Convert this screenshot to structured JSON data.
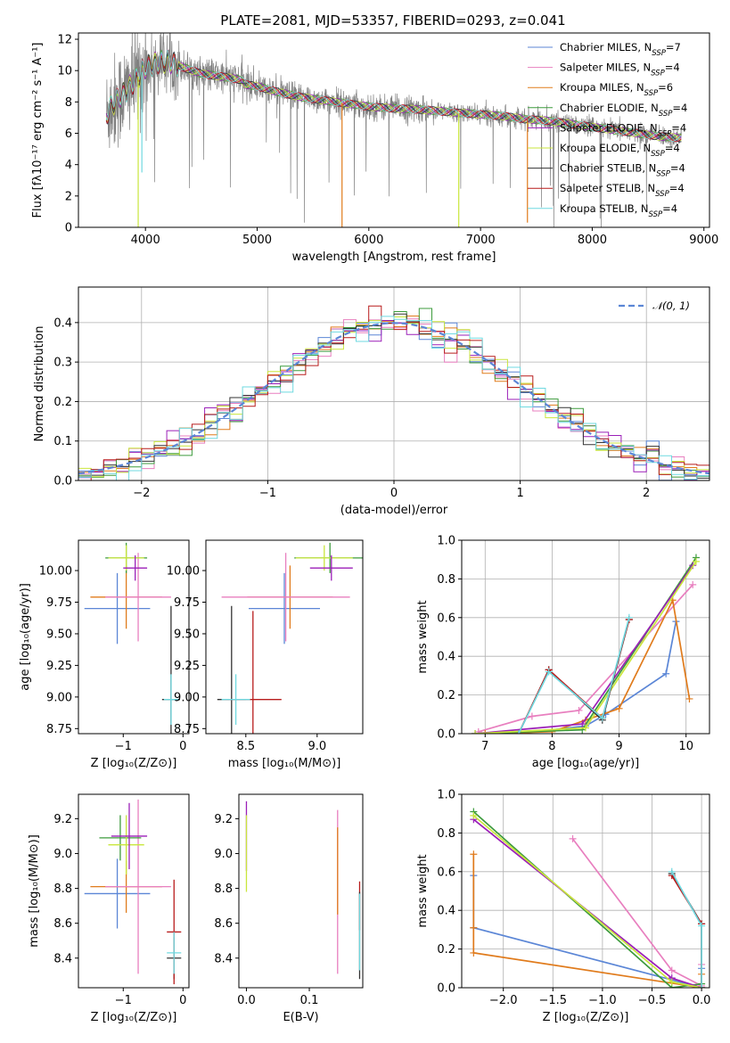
{
  "colors": {
    "chabrier_miles": "#5b86d6",
    "salpeter_miles": "#e87fbf",
    "kroupa_miles": "#e07b1c",
    "chabrier_elodie": "#3d9b3d",
    "salpeter_elodie": "#9b1fb8",
    "kroupa_elodie": "#c9e63c",
    "chabrier_stelib": "#333333",
    "salpeter_stelib": "#b81c1c",
    "kroupa_stelib": "#6fd9e0",
    "normal": "#5b86d6",
    "spectrum": "#808080"
  },
  "chart_data": [
    {
      "id": "spectrum",
      "type": "line",
      "title": "PLATE=2081, MJD=53357, FIBERID=0293, z=0.041",
      "xlabel": "wavelength [Angstrom, rest frame]",
      "ylabel": "Flux [fλ10⁻¹⁷ erg cm⁻² s⁻¹ A⁻¹]",
      "xlim": [
        3400,
        9050
      ],
      "ylim": [
        0,
        12.4
      ],
      "xticks": [
        "4000",
        "5000",
        "6000",
        "7000",
        "8000",
        "9000"
      ],
      "yticks": [
        "0",
        "2",
        "4",
        "6",
        "8",
        "10",
        "12"
      ],
      "legend_position": "top-right",
      "legend": [
        {
          "pre": "Chabrier MILES, N",
          "sub": "SSP",
          "post": "=7",
          "color": "#5b86d6"
        },
        {
          "pre": "Salpeter MILES, N",
          "sub": "SSP",
          "post": "=4",
          "color": "#e87fbf"
        },
        {
          "pre": "Kroupa MILES, N",
          "sub": "SSP",
          "post": "=6",
          "color": "#e07b1c"
        },
        {
          "pre": "Chabrier ELODIE, N",
          "sub": "SSP",
          "post": "=4",
          "color": "#3d9b3d"
        },
        {
          "pre": "Salpeter ELODIE, N",
          "sub": "SSP",
          "post": "=4",
          "color": "#9b1fb8"
        },
        {
          "pre": "Kroupa ELODIE, N",
          "sub": "SSP",
          "post": "=4",
          "color": "#c9e63c"
        },
        {
          "pre": "Chabrier STELIB, N",
          "sub": "SSP",
          "post": "=4",
          "color": "#333333"
        },
        {
          "pre": "Salpeter STELIB, N",
          "sub": "SSP",
          "post": "=4",
          "color": "#b81c1c"
        },
        {
          "pre": "Kroupa STELIB, N",
          "sub": "SSP",
          "post": "=4",
          "color": "#6fd9e0"
        }
      ],
      "continuum": {
        "x": [
          3650,
          3700,
          3800,
          3900,
          4000,
          4100,
          4200,
          4300,
          4500,
          4700,
          4860,
          4900,
          5000,
          5200,
          5400,
          5600,
          5800,
          6000,
          6200,
          6500,
          6800,
          7000,
          7200,
          7400,
          7600,
          7800,
          8000,
          8200,
          8400,
          8600,
          8800
        ],
        "y": [
          7.2,
          7.8,
          8.5,
          9.3,
          10.2,
          10.5,
          10.6,
          10.3,
          9.8,
          9.6,
          9.4,
          9.1,
          9.0,
          8.6,
          8.3,
          8.1,
          7.9,
          7.7,
          7.6,
          7.5,
          7.3,
          7.2,
          7.1,
          6.9,
          6.8,
          6.6,
          6.4,
          6.2,
          6.0,
          5.8,
          5.7
        ]
      },
      "model_absorption_dips": [
        {
          "x": 3935,
          "y": 0.0,
          "color": "#c9e63c"
        },
        {
          "x": 3968,
          "y": 3.5,
          "color": "#6fd9e0"
        },
        {
          "x": 5760,
          "y": 0.0,
          "color": "#e07b1c"
        },
        {
          "x": 6805,
          "y": 0.0,
          "color": "#c9e63c"
        },
        {
          "x": 7420,
          "y": 0.3,
          "color": "#e07b1c"
        }
      ]
    },
    {
      "id": "residuals",
      "type": "histogram",
      "xlabel": "(data-model)/error",
      "ylabel": "Normed distribution",
      "xlim": [
        -2.5,
        2.5
      ],
      "ylim": [
        0,
        0.49
      ],
      "xticks": [
        "−2",
        "−1",
        "0",
        "1",
        "2"
      ],
      "yticks": [
        "0.0",
        "0.1",
        "0.2",
        "0.3",
        "0.4"
      ],
      "grid": true,
      "legend_position": "top-right",
      "legend": [
        {
          "label": "𝒩(0, 1)",
          "color": "#5b86d6",
          "style": "dashed"
        }
      ],
      "bin_width": 0.1
    },
    {
      "id": "age_vs_Z",
      "type": "errorbar",
      "xlabel": "Z [log₁₀(Z/Z⊙)]",
      "ylabel": "age  [log₁₀(age/yr)]",
      "xlim": [
        -1.75,
        0.1
      ],
      "ylim": [
        8.71,
        10.24
      ],
      "xticks": [
        "−1",
        "0"
      ],
      "yticks": [
        "8.75",
        "9.00",
        "9.25",
        "9.50",
        "9.75",
        "10.00"
      ],
      "points": [
        {
          "x": -1.1,
          "y": 9.7,
          "xerr": 0.55,
          "yerr": 0.28,
          "color": "#5b86d6"
        },
        {
          "x": -0.95,
          "y": 9.79,
          "xerr": 0.6,
          "yerr": 0.25,
          "color": "#e07b1c"
        },
        {
          "x": -0.75,
          "y": 9.79,
          "xerr": 0.55,
          "yerr": 0.35,
          "color": "#e87fbf"
        },
        {
          "x": -0.95,
          "y": 10.1,
          "xerr": 0.35,
          "yerr": 0.12,
          "color": "#3d9b3d"
        },
        {
          "x": -0.95,
          "y": 10.1,
          "xerr": 0.3,
          "yerr": 0.1,
          "color": "#c9e63c"
        },
        {
          "x": -0.8,
          "y": 10.02,
          "xerr": 0.2,
          "yerr": 0.1,
          "color": "#9b1fb8"
        },
        {
          "x": -0.2,
          "y": 8.98,
          "xerr": 0.15,
          "yerr": 0.74,
          "color": "#333333"
        },
        {
          "x": -0.2,
          "y": 8.98,
          "xerr": 0.12,
          "yerr": 0.2,
          "color": "#6fd9e0"
        }
      ]
    },
    {
      "id": "age_vs_mass",
      "type": "errorbar",
      "xlabel": "mass [log₁₀(M/M⊙)]",
      "ylabel": "",
      "xlim": [
        8.22,
        9.32
      ],
      "ylim": [
        8.71,
        10.24
      ],
      "xticks": [
        "8.5",
        "9.0"
      ],
      "yticks": [
        "8.75",
        "9.00",
        "9.25",
        "9.50",
        "9.75",
        "10.00"
      ],
      "points": [
        {
          "x": 8.77,
          "y": 9.7,
          "xerr": 0.25,
          "yerr": 0.28,
          "color": "#5b86d6"
        },
        {
          "x": 8.81,
          "y": 9.79,
          "xerr": 0.3,
          "yerr": 0.25,
          "color": "#e07b1c"
        },
        {
          "x": 8.78,
          "y": 9.79,
          "xerr": 0.45,
          "yerr": 0.35,
          "color": "#e87fbf"
        },
        {
          "x": 9.09,
          "y": 10.1,
          "xerr": 0.25,
          "yerr": 0.12,
          "color": "#3d9b3d"
        },
        {
          "x": 9.05,
          "y": 10.1,
          "xerr": 0.2,
          "yerr": 0.1,
          "color": "#c9e63c"
        },
        {
          "x": 9.1,
          "y": 10.02,
          "xerr": 0.15,
          "yerr": 0.1,
          "color": "#9b1fb8"
        },
        {
          "x": 8.4,
          "y": 8.98,
          "xerr": 0.1,
          "yerr": 0.74,
          "color": "#333333"
        },
        {
          "x": 8.55,
          "y": 8.98,
          "xerr": 0.2,
          "yerr": 0.7,
          "color": "#b81c1c"
        },
        {
          "x": 8.43,
          "y": 8.98,
          "xerr": 0.1,
          "yerr": 0.2,
          "color": "#6fd9e0"
        }
      ]
    },
    {
      "id": "weight_vs_age",
      "type": "line",
      "xlabel": "age  [log₁₀(age/yr)]",
      "ylabel": "mass weight",
      "xlim": [
        6.65,
        10.35
      ],
      "ylim": [
        0,
        1.0
      ],
      "xticks": [
        "7",
        "8",
        "9",
        "10"
      ],
      "yticks": [
        "0.0",
        "0.2",
        "0.4",
        "0.6",
        "0.8",
        "1.0"
      ],
      "grid": true,
      "series": [
        {
          "color": "#5b86d6",
          "x": [
            7.5,
            8.0,
            8.5,
            8.8,
            9.7,
            9.85
          ],
          "y": [
            0.0,
            0.02,
            0.04,
            0.1,
            0.31,
            0.58
          ]
        },
        {
          "color": "#e87fbf",
          "x": [
            6.9,
            7.7,
            8.4,
            10.1
          ],
          "y": [
            0.01,
            0.09,
            0.12,
            0.77
          ]
        },
        {
          "color": "#e07b1c",
          "x": [
            7.0,
            8.0,
            8.5,
            9.0,
            9.8,
            10.05
          ],
          "y": [
            0.0,
            0.01,
            0.07,
            0.13,
            0.69,
            0.18
          ]
        },
        {
          "color": "#3d9b3d",
          "x": [
            6.85,
            8.45,
            10.15
          ],
          "y": [
            0.0,
            0.02,
            0.91
          ]
        },
        {
          "color": "#9b1fb8",
          "x": [
            6.85,
            8.45,
            10.1
          ],
          "y": [
            0.0,
            0.05,
            0.87
          ]
        },
        {
          "color": "#c9e63c",
          "x": [
            6.85,
            8.5,
            10.15
          ],
          "y": [
            0.0,
            0.03,
            0.89
          ]
        },
        {
          "color": "#333333",
          "x": [
            7.5,
            7.95,
            8.75,
            9.15
          ],
          "y": [
            0.0,
            0.33,
            0.07,
            0.59
          ]
        },
        {
          "color": "#b81c1c",
          "x": [
            7.5,
            7.95,
            8.75,
            9.15
          ],
          "y": [
            0.0,
            0.33,
            0.08,
            0.59
          ]
        },
        {
          "color": "#6fd9e0",
          "x": [
            7.5,
            7.95,
            8.75,
            9.15
          ],
          "y": [
            0.0,
            0.32,
            0.08,
            0.6
          ]
        }
      ]
    },
    {
      "id": "mass_vs_Z",
      "type": "errorbar",
      "xlabel": "Z [log₁₀(Z/Z⊙)]",
      "ylabel": "mass [log₁₀(M/M⊙)]",
      "xlim": [
        -1.75,
        0.1
      ],
      "ylim": [
        8.23,
        9.34
      ],
      "xticks": [
        "−1",
        "0"
      ],
      "yticks": [
        "8.4",
        "8.6",
        "8.8",
        "9.0",
        "9.2"
      ],
      "points": [
        {
          "x": -1.1,
          "y": 8.77,
          "xerr": 0.55,
          "yerr": 0.2,
          "color": "#5b86d6"
        },
        {
          "x": -0.95,
          "y": 8.81,
          "xerr": 0.6,
          "yerr": 0.15,
          "color": "#e07b1c"
        },
        {
          "x": -0.75,
          "y": 8.81,
          "xerr": 0.55,
          "yerr": 0.5,
          "color": "#e87fbf"
        },
        {
          "x": -1.05,
          "y": 9.09,
          "xerr": 0.35,
          "yerr": 0.13,
          "color": "#3d9b3d"
        },
        {
          "x": -0.95,
          "y": 9.05,
          "xerr": 0.3,
          "yerr": 0.17,
          "color": "#c9e63c"
        },
        {
          "x": -0.9,
          "y": 9.1,
          "xerr": 0.3,
          "yerr": 0.19,
          "color": "#9b1fb8"
        },
        {
          "x": -0.15,
          "y": 8.4,
          "xerr": 0.12,
          "yerr": 0.12,
          "color": "#333333"
        },
        {
          "x": -0.15,
          "y": 8.55,
          "xerr": 0.12,
          "yerr": 0.3,
          "color": "#b81c1c"
        },
        {
          "x": -0.15,
          "y": 8.43,
          "xerr": 0.12,
          "yerr": 0.12,
          "color": "#6fd9e0"
        }
      ]
    },
    {
      "id": "mass_vs_EBV",
      "type": "errorbar",
      "xlabel": "E(B-V)",
      "ylabel": "",
      "xlim": [
        -0.012,
        0.185
      ],
      "ylim": [
        8.23,
        9.34
      ],
      "xticks": [
        "0.0",
        "0.1"
      ],
      "yticks": [
        "8.4",
        "8.6",
        "8.8",
        "9.0",
        "9.2"
      ],
      "points": [
        {
          "x": 0.0,
          "y": 9.1,
          "xerr": 0,
          "yerr": 0.2,
          "color": "#9b1fb8"
        },
        {
          "x": 0.0,
          "y": 9.0,
          "xerr": 0,
          "yerr": 0.22,
          "color": "#c9e63c"
        },
        {
          "x": 0.145,
          "y": 8.78,
          "xerr": 0,
          "yerr": 0.47,
          "color": "#e87fbf"
        },
        {
          "x": 0.145,
          "y": 8.9,
          "xerr": 0,
          "yerr": 0.25,
          "color": "#e07b1c"
        },
        {
          "x": 0.18,
          "y": 8.7,
          "xerr": 0,
          "yerr": 0.14,
          "color": "#b81c1c"
        },
        {
          "x": 0.18,
          "y": 8.53,
          "xerr": 0,
          "yerr": 0.25,
          "color": "#333333"
        },
        {
          "x": 0.18,
          "y": 8.55,
          "xerr": 0,
          "yerr": 0.22,
          "color": "#6fd9e0"
        }
      ]
    },
    {
      "id": "weight_vs_Z",
      "type": "line",
      "xlabel": "Z [log₁₀(Z/Z⊙)]",
      "ylabel": "mass weight",
      "xlim": [
        -2.42,
        0.08
      ],
      "ylim": [
        0,
        1.0
      ],
      "xticks": [
        "−2.0",
        "−1.5",
        "−1.0",
        "−0.5",
        "0.0"
      ],
      "yticks": [
        "0.0",
        "0.2",
        "0.4",
        "0.6",
        "0.8",
        "1.0"
      ],
      "grid": true,
      "series": [
        {
          "color": "#5b86d6",
          "x": [
            -2.3,
            -2.3,
            0.0,
            0.0
          ],
          "y": [
            0.58,
            0.31,
            0.0,
            0.1
          ]
        },
        {
          "color": "#e87fbf",
          "x": [
            -1.3,
            -0.3,
            0.0,
            0.0
          ],
          "y": [
            0.77,
            0.09,
            0.01,
            0.12
          ]
        },
        {
          "color": "#e07b1c",
          "x": [
            -2.3,
            -2.3,
            -2.3,
            0.0,
            0.0
          ],
          "y": [
            0.69,
            0.31,
            0.18,
            0.0,
            0.07
          ]
        },
        {
          "color": "#3d9b3d",
          "x": [
            -2.3,
            -0.3,
            0.0
          ],
          "y": [
            0.91,
            0.0,
            0.02
          ]
        },
        {
          "color": "#9b1fb8",
          "x": [
            -2.3,
            -0.3,
            0.0
          ],
          "y": [
            0.87,
            0.05,
            0.0
          ]
        },
        {
          "color": "#c9e63c",
          "x": [
            -2.3,
            -0.3,
            0.0
          ],
          "y": [
            0.89,
            0.03,
            0.0
          ]
        },
        {
          "color": "#333333",
          "x": [
            -0.3,
            0.0,
            0.0
          ],
          "y": [
            0.59,
            0.33,
            0.0
          ]
        },
        {
          "color": "#b81c1c",
          "x": [
            -0.3,
            0.0,
            0.0
          ],
          "y": [
            0.58,
            0.33,
            0.0
          ]
        },
        {
          "color": "#6fd9e0",
          "x": [
            -0.3,
            0.0,
            0.0
          ],
          "y": [
            0.6,
            0.32,
            0.0
          ]
        }
      ]
    }
  ]
}
